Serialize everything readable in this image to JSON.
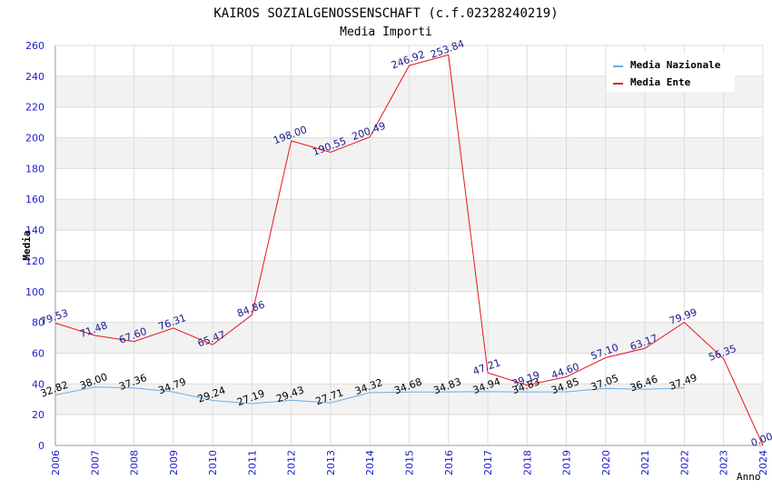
{
  "chart_data": {
    "type": "line",
    "title": "KAIROS SOZIALGENOSSENSCHAFT (c.f.02328240219)",
    "subtitle": "Media Importi",
    "xlabel": "Anno",
    "ylabel": "Media",
    "ylim": [
      0,
      260
    ],
    "yticks": [
      0,
      20,
      40,
      60,
      80,
      100,
      120,
      140,
      160,
      180,
      200,
      220,
      240,
      260
    ],
    "categories": [
      "2006",
      "2007",
      "2008",
      "2009",
      "2010",
      "2011",
      "2012",
      "2013",
      "2014",
      "2015",
      "2016",
      "2017",
      "2018",
      "2019",
      "2020",
      "2021",
      "2022",
      "2023",
      "2024"
    ],
    "grid": true,
    "legend_position": "top-right",
    "series": [
      {
        "name": "Media Nazionale",
        "color": "#6aaee8",
        "label_color": "#000000",
        "values": [
          32.82,
          38.0,
          37.36,
          34.79,
          29.24,
          27.19,
          29.43,
          27.71,
          34.32,
          34.68,
          34.83,
          34.94,
          34.83,
          34.85,
          37.05,
          36.46,
          37.49,
          null,
          null
        ],
        "labels": [
          "32.82",
          "38.00",
          "37.36",
          "34.79",
          "29.24",
          "27.19",
          "29.43",
          "27.71",
          "34.32",
          "34.68",
          "34.83",
          "34.94",
          "34.83",
          "34.85",
          "37.05",
          "36.46",
          "37.49",
          null,
          null
        ]
      },
      {
        "name": "Media Ente",
        "color": "#e8141e",
        "label_color": "#1a1a8c",
        "values": [
          79.53,
          71.48,
          67.6,
          76.31,
          65.47,
          84.86,
          198.0,
          190.55,
          200.49,
          246.92,
          253.84,
          47.21,
          39.19,
          44.6,
          57.1,
          63.17,
          79.99,
          56.35,
          0.0
        ],
        "labels": [
          "79.53",
          "71.48",
          "67.60",
          "76.31",
          "65.47",
          "84.86",
          "198.00",
          "190.55",
          "200.49",
          "246.92",
          "253.84",
          "47.21",
          "39.19",
          "44.60",
          "57.10",
          "63.17",
          "79.99",
          "56.35",
          "0.00"
        ]
      }
    ],
    "colors": {
      "axis_text": "#1a1ad4",
      "title_text": "#000000",
      "subtitle_text": "#333333",
      "band": "#f2f2f2",
      "grid": "#dddddd"
    }
  }
}
